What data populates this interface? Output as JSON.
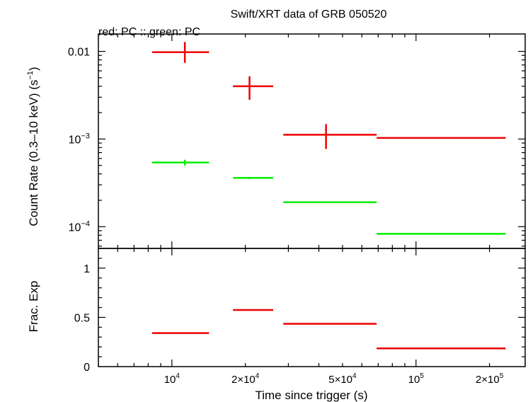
{
  "chart_data": {
    "type": "scatter",
    "title": "Swift/XRT data of GRB 050520",
    "subtitle": "red: PC  :: green: PC",
    "xlabel": "Time since trigger (s)",
    "xscale": "log",
    "xlim": [
      5000,
      280000
    ],
    "x_ticks": [
      {
        "value": 10000,
        "mant": "10",
        "exp": "4"
      },
      {
        "value": 20000,
        "mant": "2×10",
        "exp": "4"
      },
      {
        "value": 50000,
        "mant": "5×10",
        "exp": "4"
      },
      {
        "value": 100000,
        "mant": "10",
        "exp": "5"
      },
      {
        "value": 200000,
        "mant": "2×10",
        "exp": "5"
      }
    ],
    "panels": [
      {
        "name": "count-rate",
        "ylabel": "Count Rate (0.3–10 keV) (s",
        "ylabel_sup": "−1",
        "ylabel_tail": ")",
        "yscale": "log",
        "ylim": [
          5.65e-05,
          0.0158
        ],
        "y_ticks": [
          {
            "value": 0.01,
            "label": "0.01"
          },
          {
            "value": 0.001,
            "mant": "10",
            "exp": "−3"
          },
          {
            "value": 0.0001,
            "mant": "10",
            "exp": "−4"
          }
        ],
        "series": [
          {
            "color": "#ee0000",
            "points": [
              {
                "x": 11300,
                "xlo": 8300,
                "xhi": 14200,
                "y": 0.0098,
                "ylo": 0.0074,
                "yhi": 0.0128
              },
              {
                "x": 20800,
                "xlo": 17800,
                "xhi": 26000,
                "y": 0.004,
                "ylo": 0.0028,
                "yhi": 0.0052
              },
              {
                "x": 42800,
                "xlo": 28600,
                "xhi": 69000,
                "y": 0.00112,
                "ylo": 0.00077,
                "yhi": 0.00148
              },
              {
                "x": 136000,
                "xlo": 69000,
                "xhi": 233000,
                "y": 0.00103,
                "ylo": 0.00101,
                "yhi": 0.00105
              }
            ]
          },
          {
            "color": "#00ee00",
            "points": [
              {
                "x": 11300,
                "xlo": 8300,
                "xhi": 14200,
                "y": 0.00054,
                "ylo": 0.0005,
                "yhi": 0.00058
              },
              {
                "x": 20800,
                "xlo": 17800,
                "xhi": 26000,
                "y": 0.00036,
                "ylo": 0.00035,
                "yhi": 0.00037
              },
              {
                "x": 42800,
                "xlo": 28600,
                "xhi": 69000,
                "y": 0.00019,
                "ylo": 0.000187,
                "yhi": 0.000193
              },
              {
                "x": 136000,
                "xlo": 69000,
                "xhi": 233000,
                "y": 8.3e-05,
                "ylo": 8.2e-05,
                "yhi": 8.4e-05
              }
            ]
          }
        ]
      },
      {
        "name": "frac-exp",
        "ylabel": "Frac. Exp",
        "yscale": "linear",
        "ylim": [
          0,
          1.2
        ],
        "y_ticks": [
          {
            "value": 0,
            "label": "0"
          },
          {
            "value": 0.5,
            "label": "0.5"
          },
          {
            "value": 1,
            "label": "1"
          }
        ],
        "series": [
          {
            "color": "#ee0000",
            "points": [
              {
                "x": 11300,
                "xlo": 8300,
                "xhi": 14200,
                "y": 0.34
              },
              {
                "x": 20800,
                "xlo": 17800,
                "xhi": 26000,
                "y": 0.575
              },
              {
                "x": 42800,
                "xlo": 28600,
                "xhi": 69000,
                "y": 0.435
              },
              {
                "x": 136000,
                "xlo": 69000,
                "xhi": 233000,
                "y": 0.185
              }
            ]
          }
        ]
      }
    ]
  }
}
